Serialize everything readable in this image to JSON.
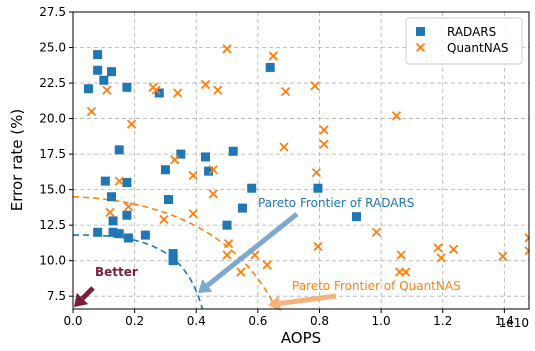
{
  "chart_data": {
    "type": "scatter",
    "xlabel": "AOPS",
    "ylabel": "Error rate (%)",
    "x_scale_label": "1e10",
    "xlim": [
      0,
      14800000000.0
    ],
    "ylim": [
      6.6,
      27.5
    ],
    "x_ticks": [
      0,
      2000000000.0,
      4000000000.0,
      6000000000.0,
      8000000000.0,
      10000000000.0,
      12000000000.0,
      14000000000.0
    ],
    "x_tick_labels": [
      "0.0",
      "0.2",
      "0.4",
      "0.6",
      "0.8",
      "1.0",
      "1.2",
      "1.4"
    ],
    "y_ticks": [
      7.5,
      10.0,
      12.5,
      15.0,
      17.5,
      20.0,
      22.5,
      25.0,
      27.5
    ],
    "y_tick_labels": [
      "7.5",
      "10.0",
      "12.5",
      "15.0",
      "17.5",
      "20.0",
      "22.5",
      "25.0",
      "27.5"
    ],
    "grid": true,
    "legend_position": "top-right",
    "colors": {
      "radars": "#1f77b4",
      "quantnas": "#ff7f0e",
      "arrow": "#7b1e3c"
    },
    "series": [
      {
        "name": "RADARS",
        "marker": "square",
        "points": [
          [
            500000000.0,
            22.1
          ],
          [
            800000000.0,
            24.5
          ],
          [
            800000000.0,
            23.4
          ],
          [
            1000000000.0,
            22.7
          ],
          [
            1250000000.0,
            23.3
          ],
          [
            1750000000.0,
            22.2
          ],
          [
            2800000000.0,
            21.8
          ],
          [
            1050000000.0,
            15.6
          ],
          [
            1500000000.0,
            17.8
          ],
          [
            1750000000.0,
            15.5
          ],
          [
            1250000000.0,
            14.5
          ],
          [
            1750000000.0,
            13.2
          ],
          [
            1300000000.0,
            12.8
          ],
          [
            1800000000.0,
            11.6
          ],
          [
            800000000.0,
            12.0
          ],
          [
            1300000000.0,
            12.0
          ],
          [
            1500000000.0,
            11.9
          ],
          [
            2350000000.0,
            11.8
          ],
          [
            3250000000.0,
            10.5
          ],
          [
            3250000000.0,
            10.1
          ],
          [
            3250000000.0,
            10.0
          ],
          [
            3000000000.0,
            16.4
          ],
          [
            3100000000.0,
            14.3
          ],
          [
            3500000000.0,
            17.5
          ],
          [
            4300000000.0,
            17.3
          ],
          [
            4400000000.0,
            16.3
          ],
          [
            5000000000.0,
            12.5
          ],
          [
            5200000000.0,
            17.7
          ],
          [
            5500000000.0,
            13.7
          ],
          [
            5800000000.0,
            15.1
          ],
          [
            6400000000.0,
            23.6
          ],
          [
            7950000000.0,
            15.1
          ],
          [
            9200000000.0,
            13.1
          ]
        ]
      },
      {
        "name": "QuantNAS",
        "marker": "x",
        "points": [
          [
            600000000.0,
            20.5
          ],
          [
            1100000000.0,
            22.0
          ],
          [
            1900000000.0,
            19.6
          ],
          [
            1500000000.0,
            15.6
          ],
          [
            1200000000.0,
            13.4
          ],
          [
            1800000000.0,
            13.8
          ],
          [
            2600000000.0,
            22.2
          ],
          [
            2700000000.0,
            22.0
          ],
          [
            3400000000.0,
            21.8
          ],
          [
            3300000000.0,
            17.1
          ],
          [
            2950000000.0,
            12.9
          ],
          [
            3900000000.0,
            13.3
          ],
          [
            3900000000.0,
            16.0
          ],
          [
            4300000000.0,
            22.4
          ],
          [
            4700000000.0,
            22.0
          ],
          [
            4550000000.0,
            16.4
          ],
          [
            4550000000.0,
            14.7
          ],
          [
            5000000000.0,
            24.9
          ],
          [
            5050000000.0,
            11.2
          ],
          [
            5000000000.0,
            10.4
          ],
          [
            5450000000.0,
            9.2
          ],
          [
            5900000000.0,
            10.4
          ],
          [
            6300000000.0,
            9.7
          ],
          [
            6500000000.0,
            24.4
          ],
          [
            6900000000.0,
            21.9
          ],
          [
            6850000000.0,
            18.0
          ],
          [
            7850000000.0,
            22.3
          ],
          [
            7900000000.0,
            16.2
          ],
          [
            8150000000.0,
            19.2
          ],
          [
            8150000000.0,
            18.2
          ],
          [
            7950000000.0,
            11.0
          ],
          [
            10500000000.0,
            20.2
          ],
          [
            9850000000.0,
            12.0
          ],
          [
            10650000000.0,
            10.4
          ],
          [
            10600000000.0,
            9.2
          ],
          [
            10800000000.0,
            9.2
          ],
          [
            11850000000.0,
            10.9
          ],
          [
            11950000000.0,
            10.2
          ],
          [
            12350000000.0,
            10.8
          ],
          [
            13950000000.0,
            10.3
          ],
          [
            14800000000.0,
            11.6
          ],
          [
            14800000000.0,
            10.7
          ]
        ]
      }
    ],
    "annotations": [
      {
        "text": "Better",
        "color": "#7b1e3c"
      },
      {
        "text": "Pareto Frontier of RADARS",
        "color": "#1f77b4"
      },
      {
        "text": "Pareto Frontier of QuantNAS",
        "color": "#ff7f0e"
      }
    ]
  }
}
